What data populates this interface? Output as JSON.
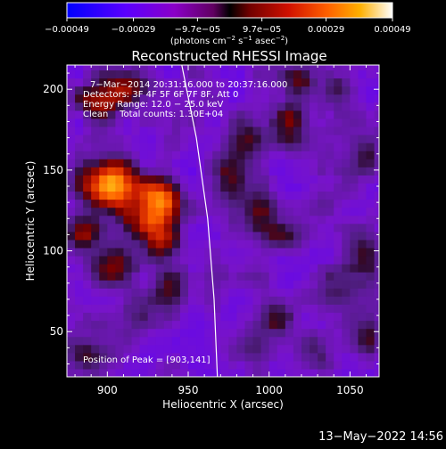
{
  "colorbar": {
    "ticks": [
      {
        "value": -0.00049,
        "label": "−0.00049"
      },
      {
        "value": -0.00029,
        "label": "−0.00029"
      },
      {
        "value": -9.7e-05,
        "label": "−9.7e−05"
      },
      {
        "value": 9.7e-05,
        "label": "9.7e−05"
      },
      {
        "value": 0.00029,
        "label": "0.00029"
      },
      {
        "value": 0.00049,
        "label": "0.00049"
      }
    ],
    "range": [
      -0.00049,
      0.00049
    ],
    "units_main": "(photons cm",
    "units_sup1": "−2",
    "units_mid": " s",
    "units_sup2": "−1",
    "units_mid2": " asec",
    "units_sup3": "−2",
    "units_end": ")"
  },
  "chart_data": {
    "type": "heatmap",
    "title": "Reconstructed RHESSI Image",
    "xlabel": "Heliocentric X (arcsec)",
    "ylabel": "Heliocentric Y (arcsec)",
    "xlim": [
      875,
      1068
    ],
    "ylim": [
      22,
      215
    ],
    "xticks": [
      900,
      950,
      1000,
      1050
    ],
    "yticks": [
      50,
      100,
      150,
      200
    ],
    "annotations": [
      "7−Mar−2014 20:31:16.000 to 20:37:16.000",
      "Detectors: 3F 4F 5F 6F 7F 8F, Att 0",
      "Energy Range: 12.0 − 25.0 keV",
      "Clean    Total counts: 1.30E+04"
    ],
    "peak_label": "Position of Peak = [903,141]",
    "peak": [
      903,
      141
    ],
    "limb": [
      [
        946,
        215
      ],
      [
        955,
        170
      ],
      [
        962,
        120
      ],
      [
        966,
        70
      ],
      [
        968,
        22
      ]
    ],
    "grid": {
      "x0": 875,
      "y0": 22,
      "dx": 5,
      "dy": 5,
      "nx": 39,
      "ny": 39
    },
    "sources": [
      {
        "x": 903,
        "y": 141,
        "amp": 1.0,
        "sx": 12,
        "sy": 10
      },
      {
        "x": 933,
        "y": 133,
        "amp": 0.75,
        "sx": 9,
        "sy": 8
      },
      {
        "x": 925,
        "y": 118,
        "amp": 0.55,
        "sx": 10,
        "sy": 8
      },
      {
        "x": 885,
        "y": 112,
        "amp": 0.45,
        "sx": 8,
        "sy": 8
      },
      {
        "x": 895,
        "y": 192,
        "amp": 0.45,
        "sx": 10,
        "sy": 8
      },
      {
        "x": 915,
        "y": 202,
        "amp": 0.4,
        "sx": 12,
        "sy": 8
      },
      {
        "x": 935,
        "y": 105,
        "amp": 0.45,
        "sx": 9,
        "sy": 9
      },
      {
        "x": 905,
        "y": 90,
        "amp": 0.35,
        "sx": 10,
        "sy": 8
      },
      {
        "x": 940,
        "y": 75,
        "amp": 0.35,
        "sx": 9,
        "sy": 9
      },
      {
        "x": 918,
        "y": 58,
        "amp": 0.3,
        "sx": 10,
        "sy": 8
      },
      {
        "x": 975,
        "y": 145,
        "amp": 0.35,
        "sx": 8,
        "sy": 12
      },
      {
        "x": 985,
        "y": 170,
        "amp": 0.3,
        "sx": 8,
        "sy": 10
      },
      {
        "x": 995,
        "y": 125,
        "amp": 0.35,
        "sx": 7,
        "sy": 10
      },
      {
        "x": 1008,
        "y": 108,
        "amp": 0.3,
        "sx": 8,
        "sy": 8
      },
      {
        "x": 1013,
        "y": 180,
        "amp": 0.35,
        "sx": 8,
        "sy": 10
      },
      {
        "x": 1018,
        "y": 205,
        "amp": 0.35,
        "sx": 8,
        "sy": 8
      },
      {
        "x": 1045,
        "y": 200,
        "amp": 0.3,
        "sx": 7,
        "sy": 8
      },
      {
        "x": 1005,
        "y": 60,
        "amp": 0.3,
        "sx": 8,
        "sy": 10
      },
      {
        "x": 1060,
        "y": 100,
        "amp": 0.3,
        "sx": 6,
        "sy": 12
      },
      {
        "x": 1062,
        "y": 45,
        "amp": 0.35,
        "sx": 6,
        "sy": 10
      },
      {
        "x": 985,
        "y": 40,
        "amp": 0.25,
        "sx": 10,
        "sy": 8
      },
      {
        "x": 1030,
        "y": 40,
        "amp": 0.28,
        "sx": 8,
        "sy": 8
      },
      {
        "x": 890,
        "y": 35,
        "amp": 0.3,
        "sx": 10,
        "sy": 8
      },
      {
        "x": 1040,
        "y": 80,
        "amp": 0.2,
        "sx": 10,
        "sy": 10
      },
      {
        "x": 1060,
        "y": 160,
        "amp": 0.25,
        "sx": 6,
        "sy": 10
      },
      {
        "x": 1035,
        "y": 130,
        "amp": 0.12,
        "sx": 10,
        "sy": 10
      }
    ]
  },
  "timestamp": "13−May−2022 14:56",
  "colors": {
    "background": "#000000",
    "foreground": "#ffffff",
    "limb": "#ffffff"
  }
}
